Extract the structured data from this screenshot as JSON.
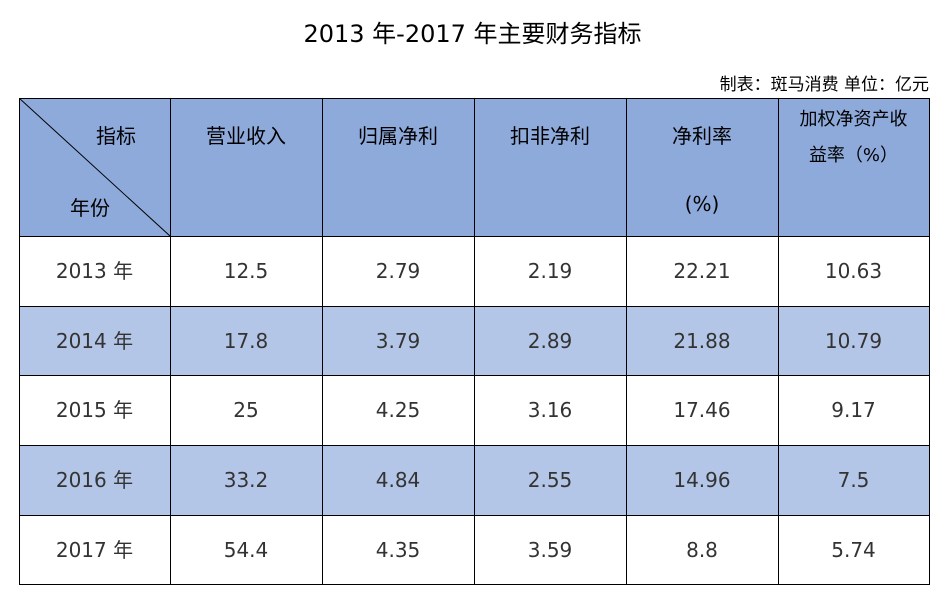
{
  "header": {
    "title": "2013 年-2017 年主要财务指标",
    "note": "制表：斑马消费 单位：亿元"
  },
  "table": {
    "corner": {
      "top": "指标",
      "bottom": "年份"
    },
    "columns": [
      [
        "营业收入"
      ],
      [
        "归属净利"
      ],
      [
        "扣非净利"
      ],
      [
        "净利率",
        "(%)"
      ],
      [
        "加权净资产收",
        "益率（%）"
      ]
    ],
    "rows": [
      [
        "2013 年",
        "12.5",
        "2.79",
        "2.19",
        "22.21",
        "10.63"
      ],
      [
        "2014 年",
        "17.8",
        "3.79",
        "2.89",
        "21.88",
        "10.79"
      ],
      [
        "2015 年",
        "25",
        "4.25",
        "3.16",
        "17.46",
        "9.17"
      ],
      [
        "2016 年",
        "33.2",
        "4.84",
        "2.55",
        "14.96",
        "7.5"
      ],
      [
        "2017 年",
        "54.4",
        "4.35",
        "3.59",
        "8.8",
        "5.74"
      ]
    ]
  }
}
